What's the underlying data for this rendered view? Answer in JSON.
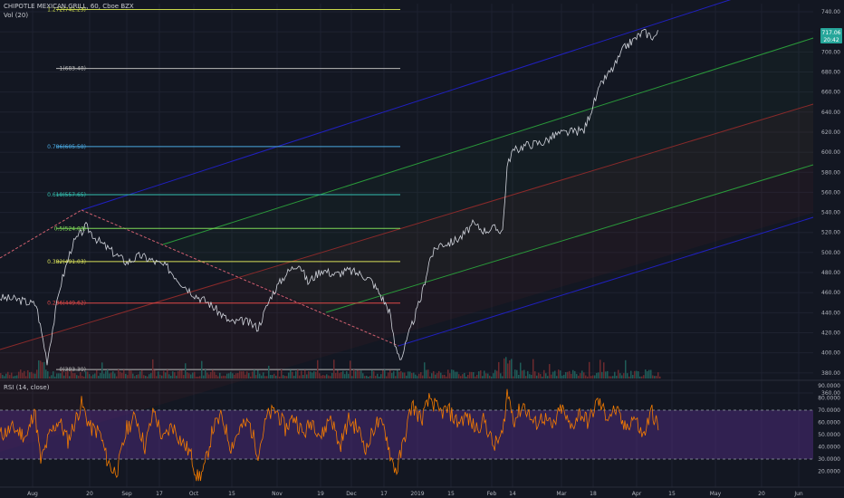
{
  "header": {
    "symbol_line": "CHIPOTLE MEXICAN GRILL, 60, Cboe BZX",
    "volume_line": "Vol (20)",
    "rsi_line": "RSI (14, close)"
  },
  "colors": {
    "background": "#131722",
    "price": "#d1d4dc",
    "rsi_line": "#f57c00",
    "rsi_band": "#4a2a78",
    "pitchfork_outer": "#2020c0",
    "pitchfork_inner": "#2a9a3a",
    "pitchfork_median": "#8a2a2a",
    "last_price_badge": "#26a69a",
    "volume_up": "#1f5c58",
    "volume_down": "#6b2a2e"
  },
  "chart_data": [
    {
      "type": "line",
      "name": "price",
      "x_axis_labels": [
        "Aug",
        "20",
        "Sep",
        "17",
        "Oct",
        "15",
        "Nov",
        "19",
        "Dec",
        "17",
        "2019",
        "15",
        "Feb",
        "14",
        "Mar",
        "18",
        "Apr",
        "15",
        "May",
        "20",
        "Jun"
      ],
      "y_ticks": [
        "740.00",
        "720.00",
        "700.00",
        "680.00",
        "660.00",
        "640.00",
        "620.00",
        "600.00",
        "580.00",
        "560.00",
        "540.00",
        "520.00",
        "500.00",
        "480.00",
        "460.00",
        "440.00",
        "420.00",
        "400.00",
        "380.00",
        "360.00"
      ],
      "ylim": [
        350,
        750
      ],
      "last_price": "717.06",
      "last_price_sub": "20:42",
      "price_keypoints": [
        [
          0,
          455
        ],
        [
          20,
          453
        ],
        [
          40,
          448
        ],
        [
          52,
          392
        ],
        [
          66,
          465
        ],
        [
          80,
          508
        ],
        [
          95,
          526
        ],
        [
          108,
          512
        ],
        [
          125,
          500
        ],
        [
          140,
          490
        ],
        [
          155,
          497
        ],
        [
          168,
          492
        ],
        [
          185,
          485
        ],
        [
          200,
          470
        ],
        [
          215,
          458
        ],
        [
          230,
          450
        ],
        [
          255,
          430
        ],
        [
          270,
          432
        ],
        [
          285,
          425
        ],
        [
          300,
          458
        ],
        [
          315,
          478
        ],
        [
          330,
          490
        ],
        [
          340,
          470
        ],
        [
          355,
          483
        ],
        [
          370,
          478
        ],
        [
          385,
          482
        ],
        [
          400,
          478
        ],
        [
          410,
          472
        ],
        [
          420,
          458
        ],
        [
          430,
          442
        ],
        [
          436,
          408
        ],
        [
          443,
          394
        ],
        [
          455,
          428
        ],
        [
          465,
          455
        ],
        [
          475,
          495
        ],
        [
          485,
          508
        ],
        [
          498,
          510
        ],
        [
          510,
          516
        ],
        [
          522,
          528
        ],
        [
          535,
          522
        ],
        [
          545,
          524
        ],
        [
          555,
          522
        ],
        [
          560,
          585
        ],
        [
          565,
          600
        ],
        [
          580,
          607
        ],
        [
          600,
          610
        ],
        [
          615,
          618
        ],
        [
          630,
          620
        ],
        [
          645,
          622
        ],
        [
          652,
          640
        ],
        [
          665,
          670
        ],
        [
          678,
          685
        ],
        [
          690,
          705
        ],
        [
          700,
          712
        ],
        [
          710,
          720
        ],
        [
          722,
          715
        ],
        [
          728,
          720
        ]
      ],
      "fibonacci": [
        {
          "label": "1.272(742.23)",
          "value": 742.23,
          "color": "#c7d64a"
        },
        {
          "label": "1(683.48)",
          "value": 683.48,
          "color": "#b8b8b8"
        },
        {
          "label": "0.786(605.58)",
          "value": 605.58,
          "color": "#4aa8e0"
        },
        {
          "label": "0.618(557.65)",
          "value": 557.65,
          "color": "#34c0b0"
        },
        {
          "label": "0.5(524.03)",
          "value": 524.03,
          "color": "#7ed957"
        },
        {
          "label": "0.382(491.03)",
          "value": 491.03,
          "color": "#d8e05a"
        },
        {
          "label": "0.236(449.62)",
          "value": 449.62,
          "color": "#e04848"
        },
        {
          "label": "0(383.39)",
          "value": 383.39,
          "color": "#b8b8b8"
        }
      ]
    },
    {
      "type": "line",
      "name": "rsi",
      "y_ticks": [
        "90.0000",
        "80.0000",
        "70.0000",
        "60.0000",
        "50.0000",
        "40.0000",
        "30.0000",
        "20.0000"
      ],
      "ylim": [
        10,
        92
      ],
      "bands": [
        30,
        70
      ],
      "rsi_keypoints": [
        [
          0,
          50
        ],
        [
          15,
          55
        ],
        [
          30,
          48
        ],
        [
          38,
          72
        ],
        [
          45,
          28
        ],
        [
          55,
          50
        ],
        [
          65,
          62
        ],
        [
          75,
          45
        ],
        [
          90,
          75
        ],
        [
          100,
          55
        ],
        [
          110,
          52
        ],
        [
          118,
          30
        ],
        [
          125,
          20
        ],
        [
          130,
          22
        ],
        [
          140,
          55
        ],
        [
          150,
          65
        ],
        [
          160,
          40
        ],
        [
          170,
          70
        ],
        [
          180,
          45
        ],
        [
          190,
          58
        ],
        [
          200,
          45
        ],
        [
          210,
          35
        ],
        [
          218,
          15
        ],
        [
          225,
          20
        ],
        [
          235,
          55
        ],
        [
          245,
          65
        ],
        [
          255,
          40
        ],
        [
          265,
          55
        ],
        [
          275,
          60
        ],
        [
          285,
          35
        ],
        [
          295,
          65
        ],
        [
          305,
          70
        ],
        [
          315,
          55
        ],
        [
          325,
          65
        ],
        [
          335,
          50
        ],
        [
          345,
          62
        ],
        [
          355,
          48
        ],
        [
          365,
          66
        ],
        [
          375,
          40
        ],
        [
          385,
          62
        ],
        [
          395,
          55
        ],
        [
          405,
          38
        ],
        [
          415,
          60
        ],
        [
          425,
          55
        ],
        [
          432,
          30
        ],
        [
          438,
          20
        ],
        [
          445,
          42
        ],
        [
          455,
          75
        ],
        [
          465,
          62
        ],
        [
          475,
          80
        ],
        [
          485,
          68
        ],
        [
          495,
          70
        ],
        [
          505,
          60
        ],
        [
          515,
          65
        ],
        [
          525,
          55
        ],
        [
          535,
          62
        ],
        [
          545,
          40
        ],
        [
          555,
          50
        ],
        [
          560,
          85
        ],
        [
          568,
          62
        ],
        [
          578,
          75
        ],
        [
          590,
          58
        ],
        [
          600,
          65
        ],
        [
          610,
          55
        ],
        [
          620,
          72
        ],
        [
          630,
          55
        ],
        [
          640,
          68
        ],
        [
          650,
          60
        ],
        [
          660,
          78
        ],
        [
          670,
          65
        ],
        [
          680,
          70
        ],
        [
          690,
          55
        ],
        [
          700,
          65
        ],
        [
          710,
          48
        ],
        [
          720,
          70
        ],
        [
          728,
          52
        ]
      ]
    }
  ]
}
